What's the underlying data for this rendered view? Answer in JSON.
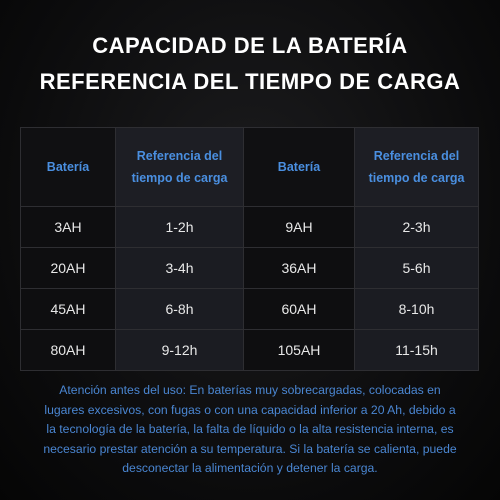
{
  "title": {
    "line1": "CAPACIDAD DE LA BATERÍA",
    "line2": "REFERENCIA DEL TIEMPO DE CARGA"
  },
  "table": {
    "headers": {
      "battery_1": "Batería",
      "time_1_line1": "Referencia del",
      "time_1_line2": "tiempo de carga",
      "battery_2": "Batería",
      "time_2_line1": "Referencia del",
      "time_2_line2": "tiempo de carga"
    },
    "rows": [
      {
        "battery_1": "3AH",
        "time_1": "1-2h",
        "battery_2": "9AH",
        "time_2": "2-3h"
      },
      {
        "battery_1": "20AH",
        "time_1": "3-4h",
        "battery_2": "36AH",
        "time_2": "5-6h"
      },
      {
        "battery_1": "45AH",
        "time_1": "6-8h",
        "battery_2": "60AH",
        "time_2": "8-10h"
      },
      {
        "battery_1": "80AH",
        "time_1": "9-12h",
        "battery_2": "105AH",
        "time_2": "11-15h"
      }
    ]
  },
  "notice": {
    "line1": "Atención antes del uso: En baterías muy sobrecargadas, colocadas en",
    "line2": "lugares excesivos, con fugas o con una capacidad inferior a 20 Ah, debido a",
    "line3": "la tecnología de la batería, la falta de líquido o la alta resistencia interna, es",
    "line4": "necesario prestar atención a su temperatura. Si la batería se calienta, puede",
    "line5": "desconectar la alimentación y detener la carga."
  },
  "colors": {
    "header_text": "#4a8fe0",
    "notice_text": "#4a86d2",
    "title_text": "#ffffff",
    "background": "#0b0b0c"
  }
}
